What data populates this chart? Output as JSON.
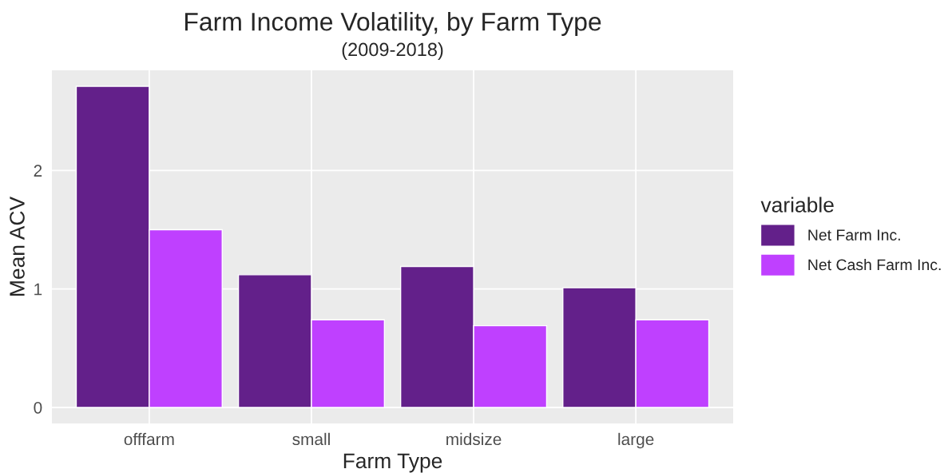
{
  "chart_data": {
    "type": "bar",
    "title": "Farm Income Volatility, by Farm Type",
    "subtitle": "(2009-2018)",
    "xlabel": "Farm Type",
    "ylabel": "Mean ACV",
    "legend_title": "variable",
    "categories": [
      "offfarm",
      "small",
      "midsize",
      "large"
    ],
    "series": [
      {
        "name": "Net Farm Inc.",
        "color": "#63208a",
        "values": [
          2.71,
          1.12,
          1.19,
          1.01
        ]
      },
      {
        "name": "Net Cash Farm Inc.",
        "color": "#bf40ff",
        "values": [
          1.5,
          0.74,
          0.69,
          0.74
        ]
      }
    ],
    "ylim": [
      -0.135,
      2.845
    ],
    "yticks": [
      0,
      1,
      2
    ],
    "grid": true,
    "legend": "right"
  }
}
